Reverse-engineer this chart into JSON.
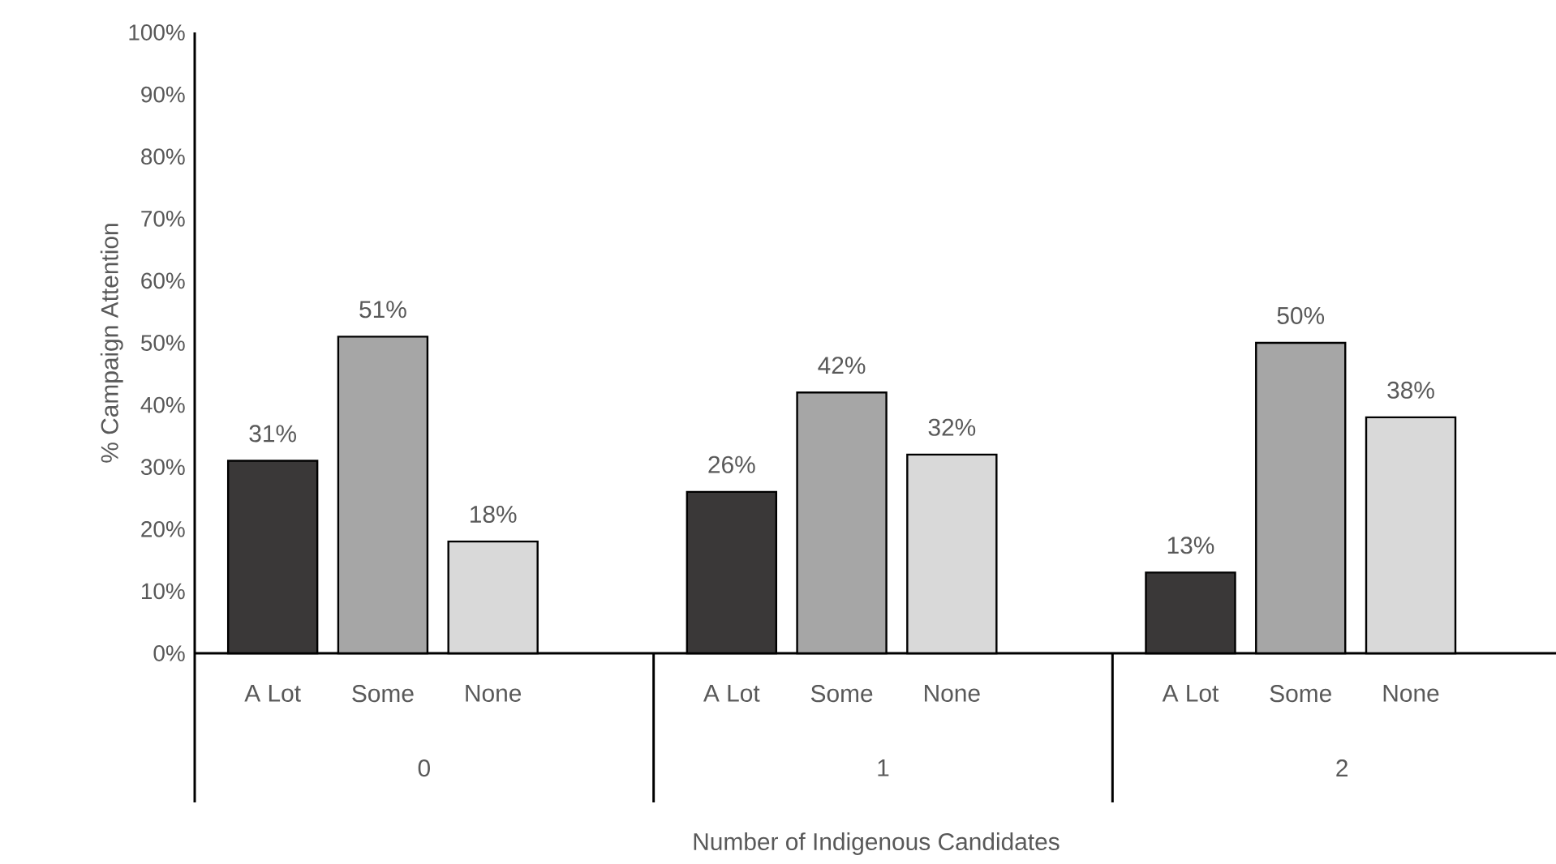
{
  "chart_data": {
    "type": "bar",
    "xlabel": "Number of Indigenous Candidates",
    "ylabel": "% Campaign Attention",
    "categories": [
      "0",
      "1",
      "2"
    ],
    "series": [
      {
        "name": "A Lot",
        "color": "#3a3838",
        "values": [
          31,
          26,
          13
        ],
        "value_labels": [
          "31%",
          "26%",
          "13%"
        ]
      },
      {
        "name": "Some",
        "color": "#a6a6a6",
        "values": [
          51,
          42,
          50
        ],
        "value_labels": [
          "51%",
          "42%",
          "50%"
        ]
      },
      {
        "name": "None",
        "color": "#d9d9d9",
        "values": [
          18,
          32,
          38
        ],
        "value_labels": [
          "18%",
          "32%",
          "38%"
        ]
      }
    ],
    "ylim": [
      0,
      100
    ],
    "yticks": [
      {
        "value": 0,
        "label": "0%"
      },
      {
        "value": 10,
        "label": "10%"
      },
      {
        "value": 20,
        "label": "20%"
      },
      {
        "value": 30,
        "label": "30%"
      },
      {
        "value": 40,
        "label": "40%"
      },
      {
        "value": 50,
        "label": "50%"
      },
      {
        "value": 60,
        "label": "60%"
      },
      {
        "value": 70,
        "label": "70%"
      },
      {
        "value": 80,
        "label": "80%"
      },
      {
        "value": 90,
        "label": "90%"
      },
      {
        "value": 100,
        "label": "100%"
      }
    ],
    "grid": false
  }
}
